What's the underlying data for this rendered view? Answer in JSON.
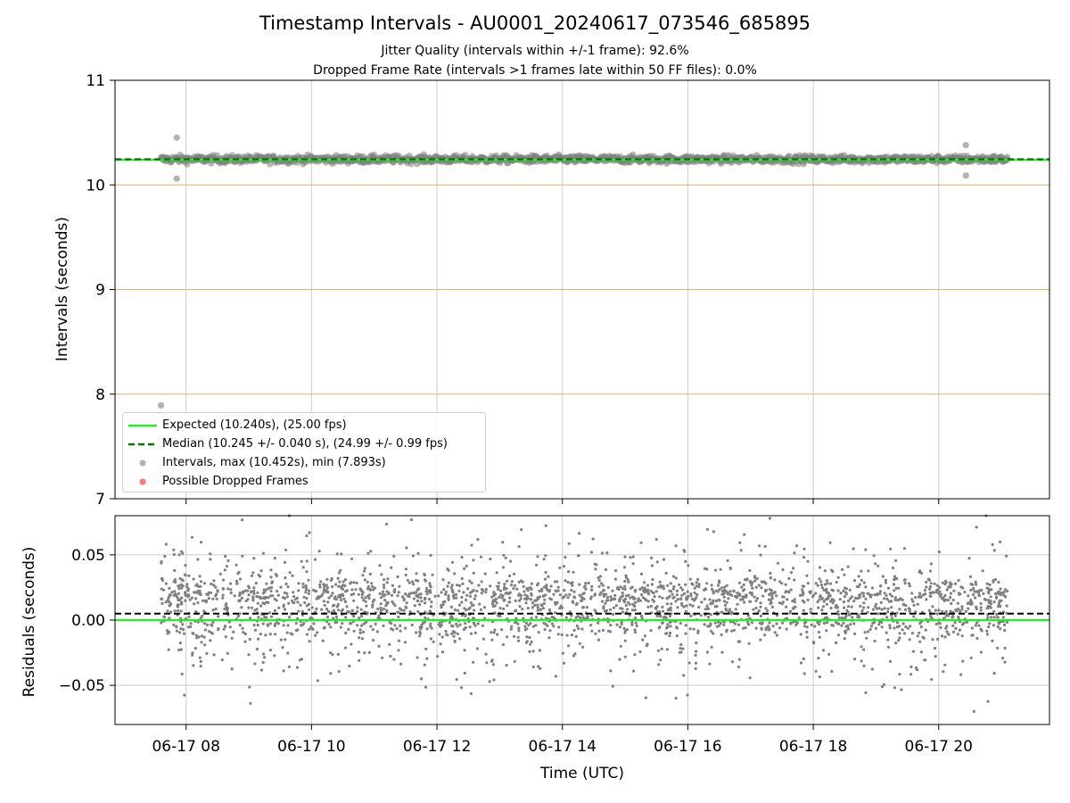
{
  "title": "Timestamp Intervals - AU0001_20240617_073546_685895",
  "subtitle_lines": [
    "Jitter Quality (intervals within +/-1 frame): 92.6%",
    "Dropped Frame Rate (intervals >1 frames late within 50 FF files): 0.0%"
  ],
  "legend": {
    "expected": "Expected (10.240s), (25.00 fps)",
    "median": "Median (10.245 +/- 0.040 s), (24.99 +/- 0.99 fps)",
    "intervals": "Intervals, max (10.452s), min (7.893s)",
    "dropped": "Possible Dropped Frames"
  },
  "colors": {
    "expected": "#22ee22",
    "median": "#007700",
    "points": "#808080",
    "dropped": "#ff5555",
    "reference_lines": "#d9b36b",
    "grid": "#cccccc"
  },
  "chart_data": [
    {
      "type": "scatter",
      "ylabel": "Intervals (seconds)",
      "x_range": [
        "2024-06-17 06:52",
        "2024-06-17 21:46"
      ],
      "ylim": [
        7,
        11
      ],
      "y_ticks": [
        7,
        8,
        9,
        10,
        11
      ],
      "grid": "x",
      "horizontal_reference_lines": [
        8,
        9,
        10
      ],
      "expected_value": 10.24,
      "median_value": 10.245,
      "point_band": {
        "x_start": "2024-06-17 07:36",
        "x_end": "2024-06-17 21:06",
        "center": 10.245,
        "spread": 0.04
      },
      "outliers": [
        {
          "x": "2024-06-17 07:36",
          "y": 7.893
        },
        {
          "x": "2024-06-17 07:51",
          "y": 10.452
        },
        {
          "x": "2024-06-17 07:51",
          "y": 10.06
        },
        {
          "x": "2024-06-17 20:26",
          "y": 10.38
        },
        {
          "x": "2024-06-17 20:26",
          "y": 10.09
        }
      ],
      "legend_position": "lower-left"
    },
    {
      "type": "scatter",
      "xlabel": "Time (UTC)",
      "ylabel": "Residuals (seconds)",
      "x_range": [
        "2024-06-17 06:52",
        "2024-06-17 21:46"
      ],
      "x_ticks": [
        "06-17 08",
        "06-17 10",
        "06-17 12",
        "06-17 14",
        "06-17 16",
        "06-17 18",
        "06-17 20"
      ],
      "ylim": [
        -0.08,
        0.08
      ],
      "y_ticks": [
        "−0.05",
        "0.00",
        "0.05"
      ],
      "grid": "both",
      "expected_residual": 0.0,
      "median_residual": 0.005,
      "point_band": {
        "x_start": "2024-06-17 07:36",
        "x_end": "2024-06-17 21:06",
        "clusters": [
          0.0,
          0.02
        ],
        "min": -0.07,
        "max": 0.08
      }
    }
  ]
}
